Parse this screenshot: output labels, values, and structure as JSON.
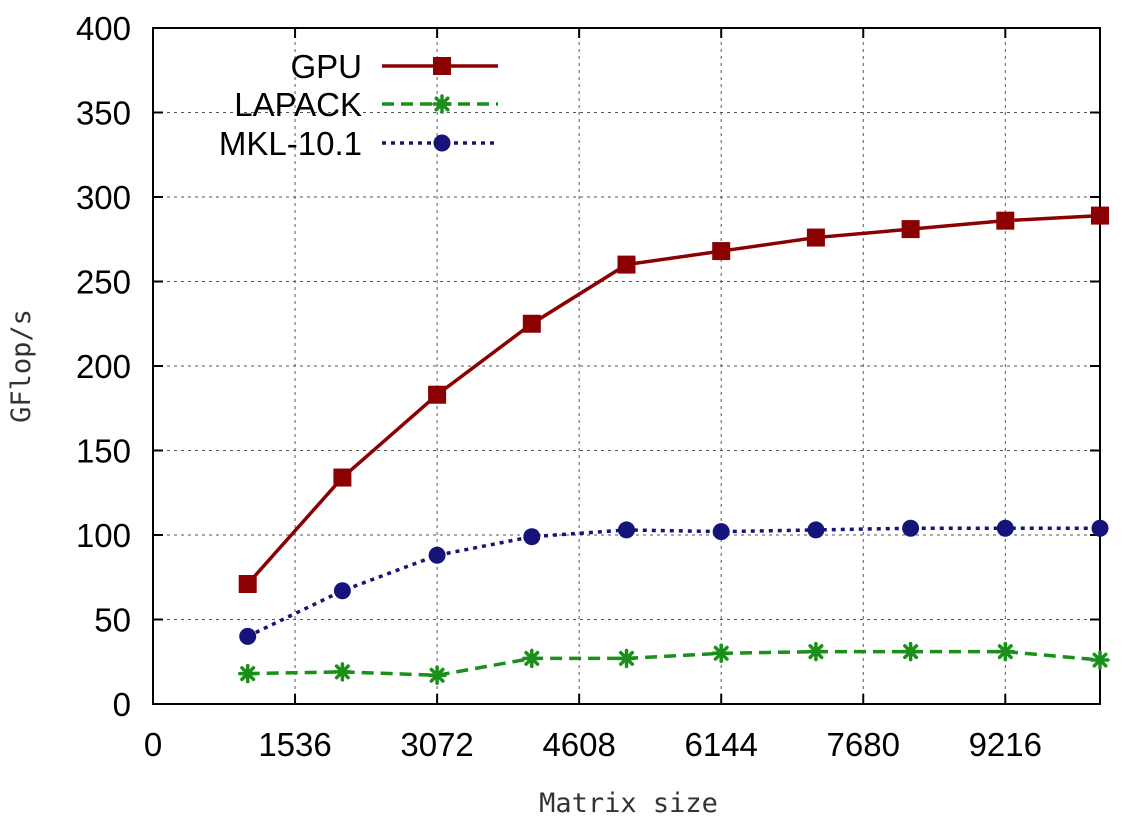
{
  "chart_data": {
    "type": "line",
    "xlabel": "Matrix size",
    "ylabel": "GFlop/s",
    "xlim": [
      0,
      10240
    ],
    "ylim": [
      0,
      400
    ],
    "x_ticks": [
      0,
      1536,
      3072,
      4608,
      6144,
      7680,
      9216
    ],
    "x_tick_labels": [
      "0",
      "1536",
      "3072",
      "4608",
      "6144",
      "7680",
      "9216"
    ],
    "y_ticks": [
      0,
      50,
      100,
      150,
      200,
      250,
      300,
      350,
      400
    ],
    "y_tick_labels": [
      "0",
      "50",
      "100",
      "150",
      "200",
      "250",
      "300",
      "350",
      "400"
    ],
    "grid": true,
    "legend_position": "top-left",
    "x": [
      1024,
      2048,
      3072,
      4096,
      5120,
      6144,
      7168,
      8192,
      9216,
      10240
    ],
    "series": [
      {
        "name": "GPU",
        "color": "#8b0000",
        "line_style": "solid",
        "marker": "square",
        "values": [
          71,
          134,
          183,
          225,
          260,
          268,
          276,
          281,
          286,
          289
        ]
      },
      {
        "name": "LAPACK",
        "color": "#1a8f1a",
        "line_style": "dashed",
        "marker": "asterisk",
        "values": [
          18,
          19,
          17,
          27,
          27,
          30,
          31,
          31,
          31,
          26
        ]
      },
      {
        "name": "MKL-10.1",
        "color": "#14147a",
        "line_style": "dotted",
        "marker": "circle",
        "values": [
          40,
          67,
          88,
          99,
          103,
          102,
          103,
          104,
          104,
          104
        ]
      }
    ]
  }
}
